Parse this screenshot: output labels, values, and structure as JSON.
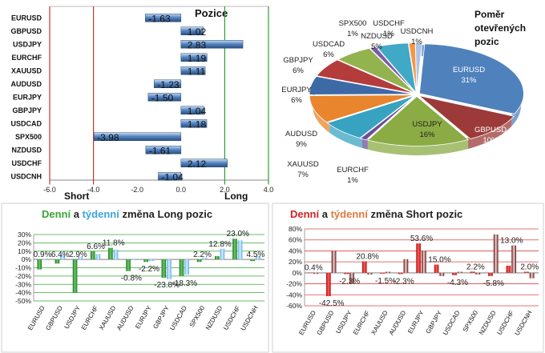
{
  "chart_data": [
    {
      "type": "bar",
      "title": "Pozice",
      "orientation": "horizontal",
      "categories": [
        "EURUSD",
        "GBPUSD",
        "USDJPY",
        "EURCHF",
        "XAUUSD",
        "AUDUSD",
        "EURJPY",
        "GBPJPY",
        "USDCAD",
        "SPX500",
        "NZDUSD",
        "USDCHF",
        "USDCNH"
      ],
      "values": [
        -1.63,
        1.02,
        2.83,
        1.19,
        1.11,
        -1.23,
        -1.5,
        1.04,
        1.18,
        -3.98,
        -1.61,
        2.12,
        -1.04
      ],
      "value_labels": [
        "-1.63",
        "1.02",
        "2.83",
        "1.19",
        "1.11",
        "-1.23",
        "-1.50",
        "1.04",
        "1.18",
        "-3.98",
        "-1.61",
        "2.12",
        "-1.04"
      ],
      "xlim": [
        -6,
        4
      ],
      "x_ticks": [
        "-6.0",
        "-4.0",
        "-2.0",
        "0.0",
        "2.0",
        "4.0"
      ],
      "short_label": "Short",
      "long_label": "Long",
      "colors": {
        "short_line": "#c0392b",
        "long_line": "#2e9e2e",
        "bar": "#4f81bd"
      }
    },
    {
      "type": "pie",
      "title": "Poměr otevřených pozic",
      "slices": [
        {
          "label": "EURUSD",
          "value": 31,
          "text": "31%",
          "color": "#4f81bd"
        },
        {
          "label": "GBPUSD",
          "value": 10,
          "text": "10%",
          "color": "#9b3a38"
        },
        {
          "label": "USDJPY",
          "value": 16,
          "text": "16%",
          "color": "#8bab45"
        },
        {
          "label": "EURCHF",
          "value": 1,
          "text": "1%",
          "color": "#6a4e9b"
        },
        {
          "label": "XAUUSD",
          "value": 7,
          "text": "7%",
          "color": "#38a3c0"
        },
        {
          "label": "AUDUSD",
          "value": 9,
          "text": "9%",
          "color": "#e8852d"
        },
        {
          "label": "EURJPY",
          "value": 6,
          "text": "6%",
          "color": "#3d6aa6"
        },
        {
          "label": "GBPJPY",
          "value": 6,
          "text": "6%",
          "color": "#b43c3c"
        },
        {
          "label": "USDCAD",
          "value": 6,
          "text": "6%",
          "color": "#93b34f"
        },
        {
          "label": "SPX500",
          "value": 1,
          "text": "1%",
          "color": "#7b5ba6"
        },
        {
          "label": "NZDUSD",
          "value": 5,
          "text": "5%",
          "color": "#3fa9c6"
        },
        {
          "label": "USDCHF",
          "value": 1,
          "text": "1%",
          "color": "#f79646"
        },
        {
          "label": "USDCNH",
          "value": 1,
          "text": "1%",
          "color": "#a9c4e6"
        }
      ]
    },
    {
      "type": "bar",
      "title_parts": [
        {
          "text": "Denní",
          "color": "#3aa53a"
        },
        {
          "text": " a ",
          "color": "#222222"
        },
        {
          "text": "týdenní",
          "color": "#3da5e0"
        },
        {
          "text": " změna Long pozic",
          "color": "#222222"
        }
      ],
      "categories": [
        "EURUSD",
        "GBPUSD",
        "USDJPY",
        "EURCHF",
        "XAUUSD",
        "AUDUSD",
        "EURJPY",
        "GBPJPY",
        "USDCAD",
        "SPX500",
        "NZDUSD",
        "USDCHF",
        "USDCNH"
      ],
      "series": [
        {
          "values": [
            -12,
            -5,
            -40,
            10,
            14,
            -14,
            -3,
            -22,
            -20,
            -3,
            4,
            25,
            -2
          ],
          "color": "#3aa53a"
        },
        {
          "values": [
            0.9,
            6.4,
            2.9,
            6.6,
            11.8,
            -0.8,
            -2.2,
            -23.8,
            -18.3,
            2.2,
            12.8,
            23.0,
            4.5
          ],
          "color": "#3da5e0"
        }
      ],
      "value_labels": [
        "0.9%",
        "6.4%",
        "2.9%",
        "6.6%",
        "11.8%",
        "-0.8%",
        "-2.2%",
        "-23.8%",
        "-18.3%",
        "2.2%",
        "12.8%",
        "23.0%",
        "4.5%"
      ],
      "ylim": [
        -50,
        30
      ],
      "y_ticks": [
        "30%",
        "20%",
        "10%",
        "0%",
        "-10%",
        "-20%",
        "-30%",
        "-40%",
        "-50%"
      ]
    },
    {
      "type": "bar",
      "title_parts": [
        {
          "text": "Denní",
          "color": "#d42020"
        },
        {
          "text": " a ",
          "color": "#222222"
        },
        {
          "text": "týdenní",
          "color": "#e07a3c"
        },
        {
          "text": " změna Short pozic",
          "color": "#222222"
        }
      ],
      "categories": [
        "EURUSD",
        "GBPUSD",
        "USDJPY",
        "EURCHF",
        "XAUUSD",
        "AUDUSD",
        "EURJPY",
        "GBPJPY",
        "USDCAD",
        "SPX500",
        "NZDUSD",
        "USDCHF",
        "USDCNH"
      ],
      "series": [
        {
          "values": [
            0.4,
            -42.5,
            -2.3,
            20.8,
            -1.5,
            -2.3,
            53.6,
            15.0,
            -4.3,
            2.2,
            -5.8,
            13.0,
            2.0
          ],
          "color": "#d42020"
        },
        {
          "values": [
            -2,
            40,
            -20,
            -3,
            2,
            25,
            40,
            -6,
            2,
            -3,
            70,
            50,
            -10
          ],
          "color": "#8b1a1a"
        }
      ],
      "value_labels": [
        "0.4%",
        "-42.5%",
        "-2.3%",
        "20.8%",
        "-1.5%",
        "-2.3%",
        "53.6%",
        "15.0%",
        "-4.3%",
        "2.2%",
        "-5.8%",
        "13.0%",
        "2.0%"
      ],
      "ylim": [
        -60,
        80
      ],
      "y_ticks": [
        "80%",
        "60%",
        "40%",
        "20%",
        "0%",
        "-20%",
        "-40%",
        "-60%"
      ]
    }
  ]
}
